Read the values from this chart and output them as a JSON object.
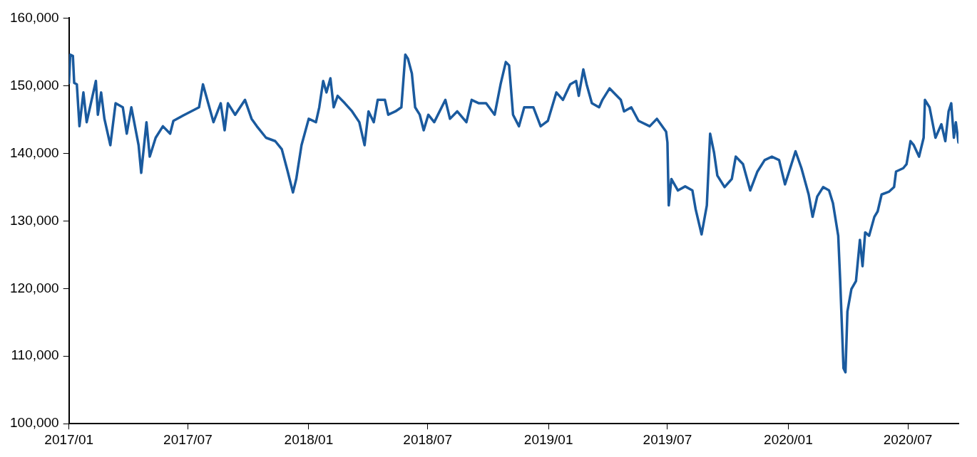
{
  "chart_data": {
    "type": "line",
    "x": [
      "2017-01-01",
      "2017-01-03",
      "2017-01-07",
      "2017-01-09",
      "2017-01-13",
      "2017-01-17",
      "2017-01-23",
      "2017-01-28",
      "2017-02-11",
      "2017-02-14",
      "2017-02-19",
      "2017-02-24",
      "2017-03-05",
      "2017-03-13",
      "2017-03-24",
      "2017-03-30",
      "2017-04-06",
      "2017-04-17",
      "2017-04-21",
      "2017-04-29",
      "2017-05-04",
      "2017-05-13",
      "2017-05-24",
      "2017-06-04",
      "2017-06-09",
      "2017-06-26",
      "2017-07-18",
      "2017-07-24",
      "2017-08-01",
      "2017-08-09",
      "2017-08-20",
      "2017-08-26",
      "2017-08-31",
      "2017-09-11",
      "2017-09-26",
      "2017-10-06",
      "2017-10-14",
      "2017-10-28",
      "2017-11-11",
      "2017-11-21",
      "2017-11-30",
      "2017-12-08",
      "2017-12-13",
      "2017-12-21",
      "2018-01-01",
      "2018-01-12",
      "2018-01-17",
      "2018-01-23",
      "2018-01-28",
      "2018-02-03",
      "2018-02-08",
      "2018-02-14",
      "2018-02-25",
      "2018-03-08",
      "2018-03-19",
      "2018-03-27",
      "2018-04-02",
      "2018-04-10",
      "2018-04-16",
      "2018-04-27",
      "2018-05-02",
      "2018-05-13",
      "2018-05-22",
      "2018-05-28",
      "2018-06-01",
      "2018-06-07",
      "2018-06-12",
      "2018-06-19",
      "2018-06-25",
      "2018-07-02",
      "2018-07-11",
      "2018-07-28",
      "2018-08-04",
      "2018-08-15",
      "2018-08-29",
      "2018-09-06",
      "2018-09-17",
      "2018-09-28",
      "2018-10-11",
      "2018-10-20",
      "2018-10-28",
      "2018-11-02",
      "2018-11-08",
      "2018-11-17",
      "2018-11-25",
      "2018-12-09",
      "2018-12-20",
      "2018-12-31",
      "2019-01-13",
      "2019-01-23",
      "2019-02-03",
      "2019-02-12",
      "2019-02-16",
      "2019-02-23",
      "2019-02-28",
      "2019-03-08",
      "2019-03-19",
      "2019-03-24",
      "2019-04-04",
      "2019-04-21",
      "2019-04-26",
      "2019-05-07",
      "2019-05-18",
      "2019-06-04",
      "2019-06-15",
      "2019-06-29",
      "2019-07-01",
      "2019-07-03",
      "2019-07-07",
      "2019-07-17",
      "2019-07-28",
      "2019-08-08",
      "2019-08-13",
      "2019-08-22",
      "2019-08-30",
      "2019-09-04",
      "2019-09-10",
      "2019-09-15",
      "2019-09-26",
      "2019-10-07",
      "2019-10-13",
      "2019-10-24",
      "2019-11-04",
      "2019-11-15",
      "2019-11-26",
      "2019-12-07",
      "2019-12-18",
      "2019-12-27",
      "2020-01-12",
      "2020-01-21",
      "2020-02-01",
      "2020-02-07",
      "2020-02-14",
      "2020-02-23",
      "2020-03-03",
      "2020-03-09",
      "2020-03-17",
      "2020-03-20",
      "2020-03-25",
      "2020-03-28",
      "2020-03-31",
      "2020-04-06",
      "2020-04-13",
      "2020-04-19",
      "2020-04-23",
      "2020-04-27",
      "2020-05-03",
      "2020-05-11",
      "2020-05-16",
      "2020-05-22",
      "2020-06-02",
      "2020-06-10",
      "2020-06-13",
      "2020-06-24",
      "2020-06-29",
      "2020-07-05",
      "2020-07-10",
      "2020-07-18",
      "2020-07-25",
      "2020-07-27",
      "2020-08-03",
      "2020-08-12",
      "2020-08-21",
      "2020-08-27",
      "2020-09-01",
      "2020-09-05",
      "2020-09-09",
      "2020-09-12",
      "2020-09-16"
    ],
    "series": [
      {
        "color": "#1a5a9e",
        "values": [
          150400,
          154600,
          154400,
          150400,
          150200,
          144000,
          149000,
          144600,
          150700,
          145700,
          149000,
          145100,
          141200,
          147400,
          146800,
          142900,
          146800,
          141200,
          137100,
          144600,
          139500,
          142300,
          144000,
          142900,
          144800,
          145700,
          146800,
          150200,
          147400,
          144600,
          147400,
          143400,
          147400,
          145700,
          147900,
          145100,
          144000,
          142300,
          141800,
          140600,
          137300,
          134200,
          136200,
          141200,
          145100,
          144600,
          146800,
          150700,
          149000,
          151100,
          146800,
          148500,
          147400,
          146200,
          144600,
          141200,
          146200,
          144600,
          147900,
          147900,
          145700,
          146200,
          146800,
          154600,
          154000,
          151800,
          146800,
          145700,
          143400,
          145700,
          144600,
          147900,
          145100,
          146200,
          144600,
          147900,
          147400,
          147400,
          145700,
          150200,
          153500,
          153000,
          145700,
          144000,
          146800,
          146800,
          144000,
          144800,
          149000,
          147900,
          150200,
          150700,
          148500,
          152400,
          150200,
          147400,
          146800,
          147900,
          149600,
          147900,
          146200,
          146800,
          144800,
          144000,
          145100,
          143200,
          141600,
          132300,
          136200,
          134500,
          135100,
          134500,
          131700,
          128000,
          132300,
          142900,
          140100,
          136700,
          135000,
          136200,
          139500,
          138400,
          134500,
          137300,
          139000,
          139500,
          139000,
          135400,
          140300,
          137800,
          133900,
          130600,
          133600,
          135000,
          134500,
          132600,
          127800,
          121100,
          108200,
          107600,
          116600,
          119900,
          121100,
          127200,
          123300,
          128300,
          127800,
          130600,
          131400,
          133900,
          134300,
          135000,
          137300,
          137800,
          138400,
          141800,
          141200,
          139500,
          142300,
          147900,
          146800,
          142300,
          144300,
          141800,
          146200,
          147400,
          142300,
          144600,
          141600
        ]
      }
    ],
    "xlim": [
      "2017-01-01",
      "2020-09-16"
    ],
    "xticks": [
      {
        "value": "2017-01",
        "label": "2017/01"
      },
      {
        "value": "2017-07",
        "label": "2017/07"
      },
      {
        "value": "2018-01",
        "label": "2018/01"
      },
      {
        "value": "2018-07",
        "label": "2018/07"
      },
      {
        "value": "2019-01",
        "label": "2019/01"
      },
      {
        "value": "2019-07",
        "label": "2019/07"
      },
      {
        "value": "2020-01",
        "label": "2020/01"
      },
      {
        "value": "2020-07",
        "label": "2020/07"
      }
    ],
    "ylim": [
      100000,
      160000
    ],
    "yticks": [
      {
        "value": 100000,
        "label": "100,000"
      },
      {
        "value": 110000,
        "label": "110,000"
      },
      {
        "value": 120000,
        "label": "120,000"
      },
      {
        "value": 130000,
        "label": "130,000"
      },
      {
        "value": 140000,
        "label": "140,000"
      },
      {
        "value": 150000,
        "label": "150,000"
      },
      {
        "value": 160000,
        "label": "160,000"
      }
    ],
    "grid": false,
    "legend": false,
    "marker": "none",
    "line_style": "solid"
  }
}
